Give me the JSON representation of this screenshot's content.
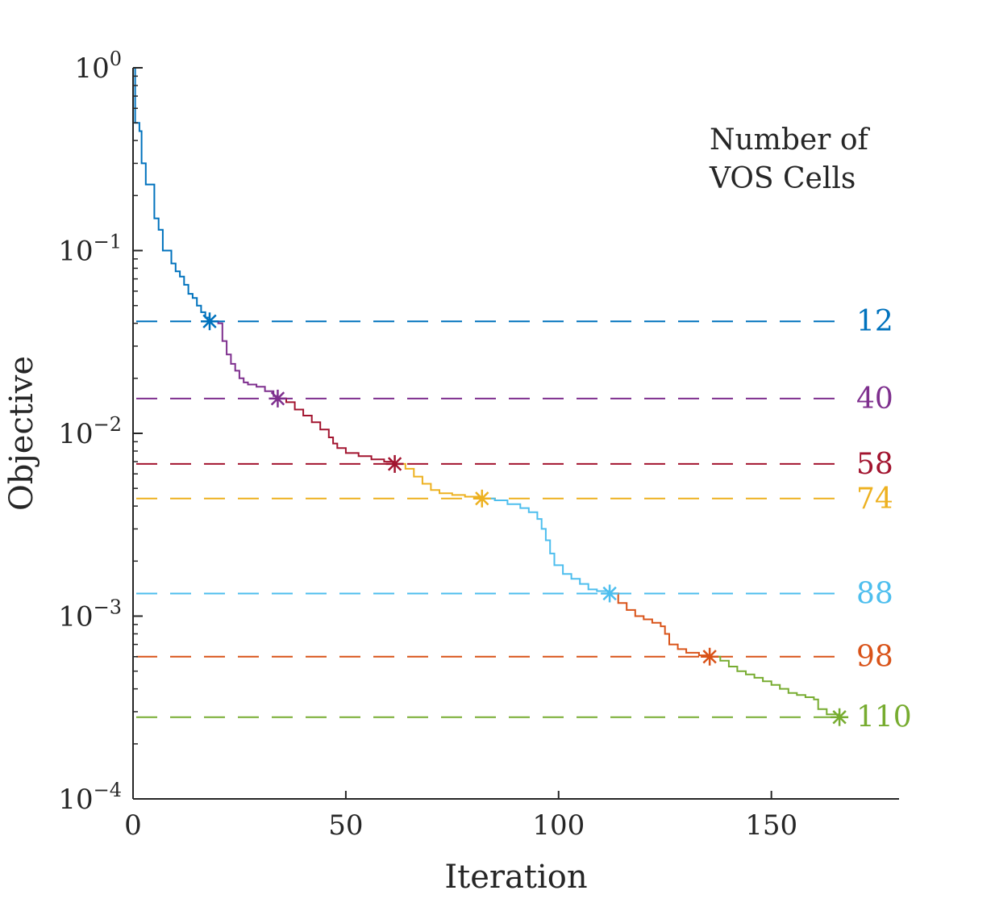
{
  "chart_data": {
    "type": "line",
    "title": "",
    "xlabel": "Iteration",
    "ylabel": "Objective",
    "xlim": [
      0,
      180
    ],
    "ylim": [
      0.0001,
      1
    ],
    "yscale": "log",
    "grid": false,
    "x_ticks": [
      {
        "value": 0,
        "label": "0"
      },
      {
        "value": 50,
        "label": "50"
      },
      {
        "value": 100,
        "label": "100"
      },
      {
        "value": 150,
        "label": "150"
      }
    ],
    "y_ticks": [
      {
        "value": 1,
        "base": "10",
        "exp": "0"
      },
      {
        "value": 0.1,
        "base": "10",
        "exp": "−1"
      },
      {
        "value": 0.01,
        "base": "10",
        "exp": "−2"
      },
      {
        "value": 0.001,
        "base": "10",
        "exp": "−3"
      },
      {
        "value": 0.0001,
        "base": "10",
        "exp": "−4"
      }
    ],
    "legend_title": [
      "Number of",
      "VOS Cells"
    ],
    "legend_placement": "top-right",
    "series": [
      {
        "name": "12",
        "color": "#0072BD",
        "level": 0.041,
        "marker": [
          18,
          0.041
        ],
        "points": [
          [
            0,
            1.0
          ],
          [
            0.5,
            0.5
          ],
          [
            1.5,
            0.45
          ],
          [
            2,
            0.3
          ],
          [
            3,
            0.23
          ],
          [
            4.5,
            0.23
          ],
          [
            5,
            0.15
          ],
          [
            6,
            0.13
          ],
          [
            7,
            0.1
          ],
          [
            8,
            0.1
          ],
          [
            9,
            0.085
          ],
          [
            10,
            0.077
          ],
          [
            11,
            0.072
          ],
          [
            12,
            0.065
          ],
          [
            13,
            0.058
          ],
          [
            14,
            0.055
          ],
          [
            15,
            0.05
          ],
          [
            16,
            0.046
          ],
          [
            17,
            0.043
          ],
          [
            18,
            0.041
          ]
        ]
      },
      {
        "name": "40",
        "color": "#7E2F8E",
        "level": 0.0155,
        "marker": [
          34,
          0.0155
        ],
        "points": [
          [
            18,
            0.041
          ],
          [
            20,
            0.04
          ],
          [
            21,
            0.032
          ],
          [
            22,
            0.027
          ],
          [
            23,
            0.024
          ],
          [
            24,
            0.022
          ],
          [
            25,
            0.02
          ],
          [
            26,
            0.019
          ],
          [
            27,
            0.0185
          ],
          [
            29,
            0.018
          ],
          [
            31,
            0.017
          ],
          [
            33,
            0.016
          ],
          [
            34,
            0.0155
          ]
        ]
      },
      {
        "name": "58",
        "color": "#A2142F",
        "level": 0.0068,
        "marker": [
          61.5,
          0.0068
        ],
        "points": [
          [
            34,
            0.0155
          ],
          [
            36,
            0.0148
          ],
          [
            38,
            0.0135
          ],
          [
            40,
            0.0125
          ],
          [
            42,
            0.0115
          ],
          [
            44,
            0.0105
          ],
          [
            46,
            0.0095
          ],
          [
            47,
            0.0088
          ],
          [
            48,
            0.0083
          ],
          [
            50,
            0.0078
          ],
          [
            53,
            0.0075
          ],
          [
            56,
            0.0072
          ],
          [
            59,
            0.007
          ],
          [
            61.5,
            0.0068
          ]
        ]
      },
      {
        "name": "74",
        "color": "#EDB120",
        "level": 0.0044,
        "marker": [
          82,
          0.0044
        ],
        "points": [
          [
            61.5,
            0.0068
          ],
          [
            64,
            0.0064
          ],
          [
            66,
            0.0058
          ],
          [
            68,
            0.0053
          ],
          [
            70,
            0.0049
          ],
          [
            72,
            0.0047
          ],
          [
            75,
            0.0046
          ],
          [
            78,
            0.0045
          ],
          [
            82,
            0.0044
          ]
        ]
      },
      {
        "name": "88",
        "color": "#4DBEEE",
        "level": 0.00133,
        "marker": [
          112,
          0.00133
        ],
        "points": [
          [
            82,
            0.0044
          ],
          [
            85,
            0.0043
          ],
          [
            88,
            0.0041
          ],
          [
            91,
            0.0039
          ],
          [
            93,
            0.0037
          ],
          [
            95,
            0.0034
          ],
          [
            96,
            0.003
          ],
          [
            97,
            0.0026
          ],
          [
            98,
            0.0022
          ],
          [
            99,
            0.0019
          ],
          [
            101,
            0.0017
          ],
          [
            103,
            0.0016
          ],
          [
            105,
            0.0015
          ],
          [
            107,
            0.0014
          ],
          [
            109,
            0.00137
          ],
          [
            112,
            0.00133
          ]
        ]
      },
      {
        "name": "98",
        "color": "#D95319",
        "level": 0.0006,
        "marker": [
          135.5,
          0.0006
        ],
        "points": [
          [
            112,
            0.00133
          ],
          [
            114,
            0.00118
          ],
          [
            116,
            0.00108
          ],
          [
            118,
            0.001
          ],
          [
            120,
            0.00096
          ],
          [
            122,
            0.00092
          ],
          [
            124,
            0.00088
          ],
          [
            125,
            0.0008
          ],
          [
            126,
            0.0007
          ],
          [
            128,
            0.00066
          ],
          [
            130,
            0.00063
          ],
          [
            133,
            0.00061
          ],
          [
            135.5,
            0.0006
          ]
        ]
      },
      {
        "name": "110",
        "color": "#77AC30",
        "level": 0.00028,
        "marker": [
          166,
          0.00028
        ],
        "points": [
          [
            135.5,
            0.0006
          ],
          [
            138,
            0.00057
          ],
          [
            140,
            0.00053
          ],
          [
            142,
            0.0005
          ],
          [
            144,
            0.00048
          ],
          [
            146,
            0.00046
          ],
          [
            148,
            0.00044
          ],
          [
            150,
            0.00042
          ],
          [
            152,
            0.0004
          ],
          [
            154,
            0.00038
          ],
          [
            156,
            0.00037
          ],
          [
            158,
            0.00036
          ],
          [
            160,
            0.00035
          ],
          [
            161,
            0.00031
          ],
          [
            163,
            0.00029
          ],
          [
            166,
            0.00028
          ]
        ]
      }
    ]
  }
}
